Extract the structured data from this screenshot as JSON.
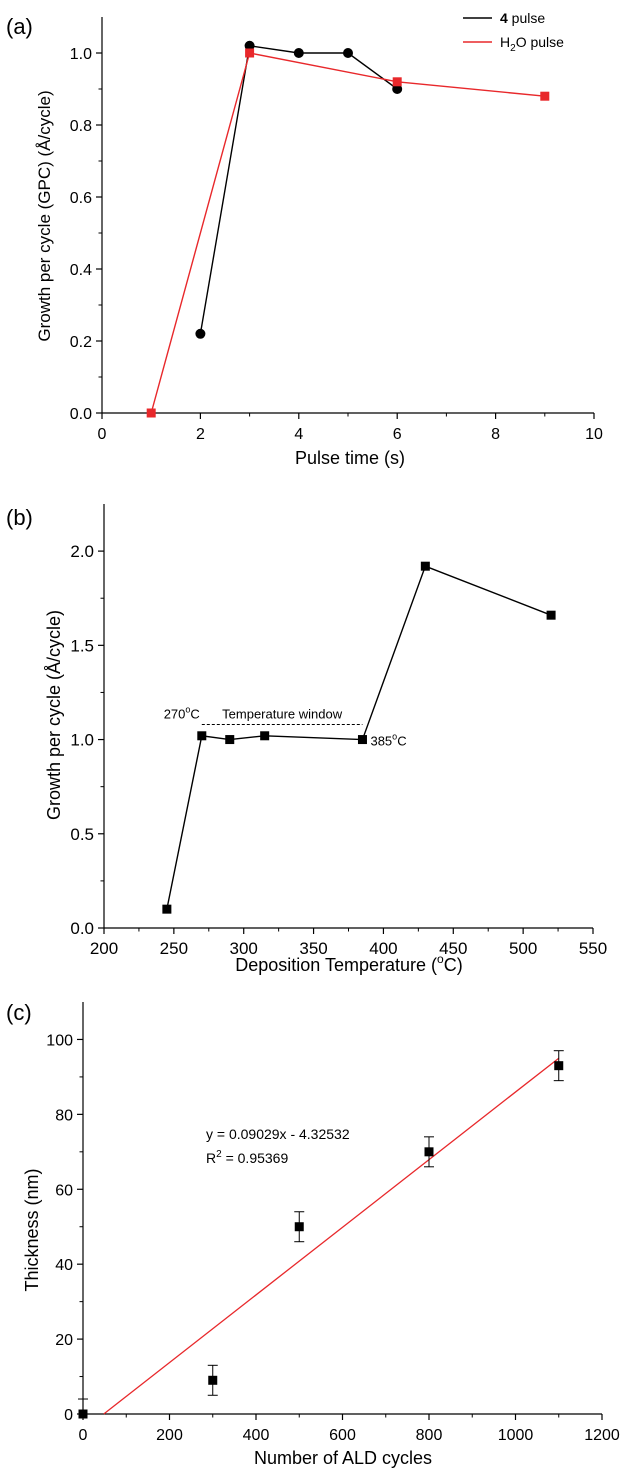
{
  "chart_data": [
    {
      "panel_label": "(a)",
      "type": "line",
      "xlabel": "Pulse time (s)",
      "ylabel": "Growth per cycle (GPC) (Å/cycle)",
      "xlim": [
        0,
        10
      ],
      "ylim": [
        0,
        1.1
      ],
      "x_ticks": [
        "0",
        "2",
        "4",
        "6",
        "8",
        "10"
      ],
      "y_ticks": [
        "0.0",
        "0.2",
        "0.4",
        "0.6",
        "0.8",
        "1.0"
      ],
      "grid": false,
      "legend_position": "top-right",
      "series": [
        {
          "name": "4 pulse",
          "name_bold": "4",
          "name_rest": " pulse",
          "color": "#000000",
          "marker": "circle",
          "x": [
            2,
            3,
            4,
            5,
            6
          ],
          "y": [
            0.22,
            1.02,
            1.0,
            1.0,
            0.9
          ]
        },
        {
          "name": "H2O pulse",
          "name_pre": "H",
          "name_sub": "2",
          "name_post": "O pulse",
          "color": "#e8282b",
          "marker": "square",
          "x": [
            1,
            3,
            6,
            9
          ],
          "y": [
            0.0,
            1.0,
            0.92,
            0.88
          ]
        }
      ]
    },
    {
      "panel_label": "(b)",
      "type": "line",
      "xlabel_pre": "Deposition Temperature (",
      "xlabel_sup": "o",
      "xlabel_post": "C)",
      "ylabel": "Growth per cycle (Å/cycle)",
      "xlim": [
        200,
        550
      ],
      "ylim": [
        0,
        2.25
      ],
      "x_ticks": [
        "200",
        "250",
        "300",
        "350",
        "400",
        "450",
        "500",
        "550"
      ],
      "y_ticks": [
        "0.0",
        "0.5",
        "1.0",
        "1.5",
        "2.0"
      ],
      "grid": false,
      "series": [
        {
          "color": "#000000",
          "marker": "square",
          "x": [
            245,
            270,
            290,
            315,
            385,
            430,
            520
          ],
          "y": [
            0.1,
            1.02,
            1.0,
            1.02,
            1.0,
            1.92,
            1.66
          ]
        }
      ],
      "annotations": {
        "window_label": "Temperature window",
        "window_x": [
          270,
          385
        ],
        "window_y": 1.08,
        "left_pre": "270",
        "left_sup": "o",
        "left_post": "C",
        "right_pre": "385",
        "right_sup": "o",
        "right_post": "C"
      }
    },
    {
      "panel_label": "(c)",
      "type": "scatter",
      "xlabel": "Number of ALD cycles",
      "ylabel": "Thickness (nm)",
      "xlim": [
        0,
        1200
      ],
      "ylim": [
        0,
        110
      ],
      "x_ticks": [
        "0",
        "200",
        "400",
        "600",
        "800",
        "1000",
        "1200"
      ],
      "y_ticks": [
        "0",
        "20",
        "40",
        "60",
        "80",
        "100"
      ],
      "grid": false,
      "series": [
        {
          "color": "#000000",
          "marker": "square",
          "x": [
            0,
            300,
            500,
            800,
            1100
          ],
          "y": [
            0,
            9,
            50,
            70,
            93
          ],
          "yerr": [
            4,
            4,
            4,
            4,
            4
          ]
        }
      ],
      "fit": {
        "color": "#e8282b",
        "slope": 0.09029,
        "intercept": -4.32532,
        "x_range": [
          48,
          1100
        ],
        "equation": "y = 0.09029x - 4.32532",
        "r2_pre": "R",
        "r2_sup": "2",
        "r2_post": " = 0.95369"
      }
    }
  ]
}
